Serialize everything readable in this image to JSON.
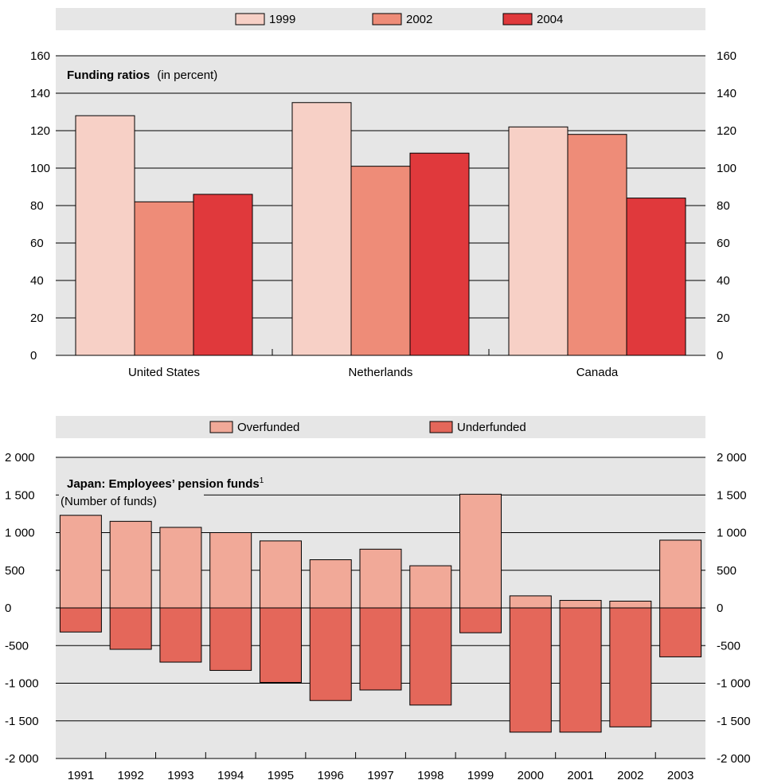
{
  "chart_data": [
    {
      "type": "bar",
      "title": "Funding ratios",
      "subtitle": "(in percent)",
      "categories": [
        "United States",
        "Netherlands",
        "Canada"
      ],
      "series": [
        {
          "name": "1999",
          "values": [
            128,
            135,
            122
          ]
        },
        {
          "name": "2002",
          "values": [
            82,
            101,
            118
          ]
        },
        {
          "name": "2004",
          "values": [
            86,
            108,
            84
          ]
        }
      ],
      "ylim": [
        0,
        160
      ],
      "yticks": [
        "0",
        "20",
        "40",
        "60",
        "80",
        "100",
        "120",
        "140",
        "160"
      ],
      "grid": true,
      "legend_position": "top-center",
      "colors": {
        "1999": "#f7d0c6",
        "2002": "#ee8c78",
        "2004": "#e0393c"
      }
    },
    {
      "type": "bar",
      "title": "Japan: Employees’ pension funds",
      "title_footnote": "1",
      "subtitle": "(Number of funds)",
      "categories": [
        "1991",
        "1992",
        "1993",
        "1994",
        "1995",
        "1996",
        "1997",
        "1998",
        "1999",
        "2000",
        "2001",
        "2002",
        "2003"
      ],
      "series": [
        {
          "name": "Overfunded",
          "values": [
            1230,
            1150,
            1070,
            1000,
            890,
            640,
            780,
            560,
            1510,
            160,
            100,
            90,
            900
          ]
        },
        {
          "name": "Underfunded",
          "values": [
            -320,
            -550,
            -720,
            -830,
            -990,
            -1230,
            -1090,
            -1290,
            -330,
            -1650,
            -1650,
            -1580,
            -650
          ]
        }
      ],
      "ylim": [
        -2000,
        2000
      ],
      "yticks": [
        "-2 000",
        "-1 500",
        "-1 000",
        "-500",
        "0",
        "500",
        "1 000",
        "1 500",
        "2 000"
      ],
      "grid": true,
      "legend_position": "top-center",
      "colors": {
        "Overfunded": "#f1a998",
        "Underfunded": "#e4675a"
      }
    }
  ]
}
